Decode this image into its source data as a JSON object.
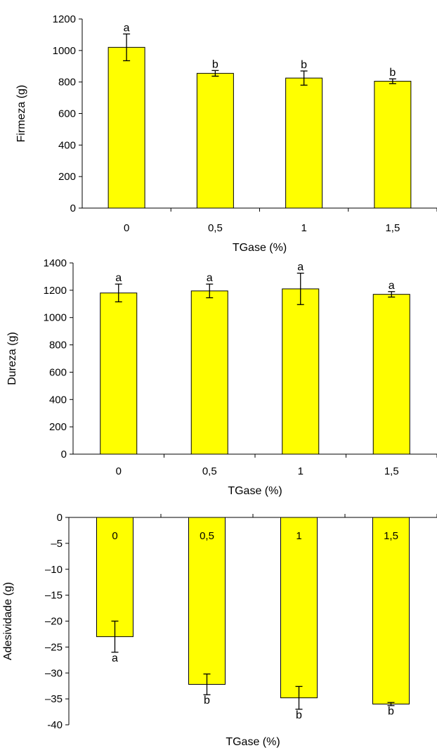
{
  "style": {
    "bar_color": "#ffff00",
    "bar_stroke": "#000000"
  },
  "chart_data": [
    {
      "type": "bar",
      "ylabel": "Firmeza (g)",
      "xlabel": "TGase (%)",
      "categories": [
        "0",
        "0,5",
        "1",
        "1,5"
      ],
      "values": [
        1020,
        855,
        825,
        805
      ],
      "errors": [
        85,
        18,
        45,
        15
      ],
      "letters": [
        "a",
        "b",
        "b",
        "b"
      ],
      "ylim": [
        0,
        1200
      ],
      "yticks": [
        0,
        200,
        400,
        600,
        800,
        1000,
        1200
      ]
    },
    {
      "type": "bar",
      "ylabel": "Dureza (g)",
      "xlabel": "TGase (%)",
      "categories": [
        "0",
        "0,5",
        "1",
        "1,5"
      ],
      "values": [
        1180,
        1195,
        1210,
        1170
      ],
      "errors": [
        65,
        50,
        115,
        20
      ],
      "letters": [
        "a",
        "a",
        "a",
        "a"
      ],
      "ylim": [
        0,
        1400
      ],
      "yticks": [
        0,
        200,
        400,
        600,
        800,
        1000,
        1200,
        1400
      ]
    },
    {
      "type": "bar",
      "ylabel": "Adesividade (g)",
      "xlabel": "TGase (%)",
      "categories": [
        "0",
        "0,5",
        "1",
        "1,5"
      ],
      "values": [
        -23,
        -32.2,
        -34.8,
        -36
      ],
      "errors": [
        3,
        2,
        2.2,
        0.3
      ],
      "letters": [
        "a",
        "b",
        "b",
        "b"
      ],
      "ylim": [
        -40,
        0
      ],
      "yticks": [
        "0",
        "–5",
        "–10",
        "–15",
        "–20",
        "–25",
        "–30",
        "–35",
        "-40"
      ],
      "ytick_values": [
        0,
        -5,
        -10,
        -15,
        -20,
        -25,
        -30,
        -35,
        -40
      ]
    }
  ]
}
